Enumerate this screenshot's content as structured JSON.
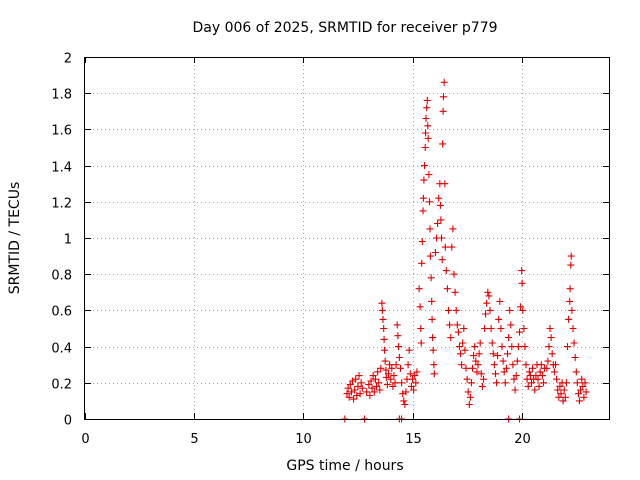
{
  "chart_data": {
    "type": "scatter",
    "title": "Day 006 of 2025, SRMTID for receiver p779",
    "xlabel": "GPS time / hours",
    "ylabel": "SRMTID / TECUs",
    "xlim": [
      0,
      24
    ],
    "ylim": [
      0,
      2
    ],
    "xticks": [
      0,
      5,
      10,
      15,
      20
    ],
    "yticks": [
      0,
      0.2,
      0.4,
      0.6,
      0.8,
      1,
      1.2,
      1.4,
      1.6,
      1.8,
      2
    ],
    "ytick_labels": [
      "0",
      "0.2",
      "0.4",
      "0.6",
      "0.8",
      "1",
      "1.2",
      "1.4",
      "1.6",
      "1.8",
      "2"
    ],
    "grid": true,
    "marker": "plus",
    "color": "#e00000",
    "series": [
      {
        "name": "SRMTID",
        "points": [
          [
            11.9,
            0.0
          ],
          [
            12.8,
            0.0
          ],
          [
            14.4,
            0.0
          ],
          [
            14.5,
            0.0
          ],
          [
            19.4,
            0.0
          ],
          [
            19.9,
            0.0
          ],
          [
            12.0,
            0.14
          ],
          [
            12.05,
            0.17
          ],
          [
            12.1,
            0.12
          ],
          [
            12.15,
            0.19
          ],
          [
            12.2,
            0.15
          ],
          [
            12.25,
            0.21
          ],
          [
            12.3,
            0.11
          ],
          [
            12.35,
            0.16
          ],
          [
            12.4,
            0.22
          ],
          [
            12.45,
            0.13
          ],
          [
            12.5,
            0.18
          ],
          [
            12.55,
            0.24
          ],
          [
            12.6,
            0.14
          ],
          [
            12.65,
            0.2
          ],
          [
            12.7,
            0.17
          ],
          [
            12.9,
            0.15
          ],
          [
            13.0,
            0.19
          ],
          [
            13.05,
            0.13
          ],
          [
            13.1,
            0.21
          ],
          [
            13.15,
            0.17
          ],
          [
            13.2,
            0.24
          ],
          [
            13.25,
            0.15
          ],
          [
            13.3,
            0.22
          ],
          [
            13.35,
            0.18
          ],
          [
            13.4,
            0.26
          ],
          [
            13.45,
            0.2
          ],
          [
            13.5,
            0.16
          ],
          [
            13.55,
            0.28
          ],
          [
            13.6,
            0.64
          ],
          [
            13.62,
            0.6
          ],
          [
            13.65,
            0.55
          ],
          [
            13.68,
            0.5
          ],
          [
            13.7,
            0.44
          ],
          [
            13.72,
            0.38
          ],
          [
            13.75,
            0.32
          ],
          [
            13.78,
            0.27
          ],
          [
            13.8,
            0.23
          ],
          [
            13.85,
            0.19
          ],
          [
            13.9,
            0.25
          ],
          [
            13.95,
            0.3
          ],
          [
            14.0,
            0.22
          ],
          [
            14.05,
            0.28
          ],
          [
            14.1,
            0.18
          ],
          [
            14.15,
            0.24
          ],
          [
            14.2,
            0.2
          ],
          [
            14.25,
            0.3
          ],
          [
            14.3,
            0.52
          ],
          [
            14.33,
            0.46
          ],
          [
            14.36,
            0.4
          ],
          [
            14.4,
            0.34
          ],
          [
            14.45,
            0.28
          ],
          [
            14.5,
            0.2
          ],
          [
            14.55,
            0.14
          ],
          [
            14.6,
            0.1
          ],
          [
            14.65,
            0.08
          ],
          [
            14.7,
            0.15
          ],
          [
            14.75,
            0.22
          ],
          [
            14.8,
            0.3
          ],
          [
            14.85,
            0.38
          ],
          [
            14.9,
            0.25
          ],
          [
            14.95,
            0.18
          ],
          [
            15.0,
            0.22
          ],
          [
            15.05,
            0.16
          ],
          [
            15.1,
            0.24
          ],
          [
            15.15,
            0.2
          ],
          [
            15.2,
            0.26
          ],
          [
            15.3,
            0.72
          ],
          [
            15.35,
            0.62
          ],
          [
            15.38,
            0.5
          ],
          [
            15.4,
            0.42
          ],
          [
            15.42,
            0.86
          ],
          [
            15.45,
            0.98
          ],
          [
            15.48,
            1.15
          ],
          [
            15.5,
            1.22
          ],
          [
            15.52,
            1.32
          ],
          [
            15.55,
            1.4
          ],
          [
            15.58,
            1.5
          ],
          [
            15.6,
            1.58
          ],
          [
            15.62,
            1.66
          ],
          [
            15.65,
            1.72
          ],
          [
            15.68,
            1.76
          ],
          [
            15.7,
            1.62
          ],
          [
            15.72,
            1.55
          ],
          [
            15.75,
            1.35
          ],
          [
            15.78,
            1.2
          ],
          [
            15.8,
            1.05
          ],
          [
            15.82,
            0.9
          ],
          [
            15.85,
            0.78
          ],
          [
            15.88,
            0.65
          ],
          [
            15.9,
            0.55
          ],
          [
            15.92,
            0.45
          ],
          [
            15.95,
            0.38
          ],
          [
            15.98,
            0.3
          ],
          [
            16.0,
            0.25
          ],
          [
            16.05,
            0.92
          ],
          [
            16.1,
            1.0
          ],
          [
            16.15,
            1.08
          ],
          [
            16.2,
            1.22
          ],
          [
            16.25,
            1.3
          ],
          [
            16.28,
            1.18
          ],
          [
            16.3,
            1.1
          ],
          [
            16.33,
            1.0
          ],
          [
            16.36,
            0.88
          ],
          [
            16.38,
            1.52
          ],
          [
            16.4,
            1.7
          ],
          [
            16.42,
            1.78
          ],
          [
            16.45,
            1.86
          ],
          [
            16.48,
            1.3
          ],
          [
            16.5,
            0.95
          ],
          [
            16.55,
            0.82
          ],
          [
            16.6,
            0.72
          ],
          [
            16.65,
            0.6
          ],
          [
            16.7,
            0.52
          ],
          [
            16.75,
            0.45
          ],
          [
            16.8,
            0.95
          ],
          [
            16.85,
            1.05
          ],
          [
            16.9,
            0.8
          ],
          [
            16.95,
            0.7
          ],
          [
            17.0,
            0.6
          ],
          [
            17.05,
            0.52
          ],
          [
            17.1,
            0.48
          ],
          [
            17.15,
            0.4
          ],
          [
            17.2,
            0.36
          ],
          [
            17.25,
            0.3
          ],
          [
            17.3,
            0.42
          ],
          [
            17.35,
            0.5
          ],
          [
            17.4,
            0.38
          ],
          [
            17.45,
            0.28
          ],
          [
            17.5,
            0.22
          ],
          [
            17.55,
            0.15
          ],
          [
            17.6,
            0.08
          ],
          [
            17.65,
            0.12
          ],
          [
            17.7,
            0.2
          ],
          [
            17.75,
            0.28
          ],
          [
            17.8,
            0.35
          ],
          [
            17.85,
            0.4
          ],
          [
            17.9,
            0.32
          ],
          [
            17.95,
            0.26
          ],
          [
            18.0,
            0.3
          ],
          [
            18.05,
            0.36
          ],
          [
            18.1,
            0.42
          ],
          [
            18.15,
            0.25
          ],
          [
            18.2,
            0.18
          ],
          [
            18.25,
            0.22
          ],
          [
            18.3,
            0.5
          ],
          [
            18.35,
            0.58
          ],
          [
            18.4,
            0.64
          ],
          [
            18.45,
            0.7
          ],
          [
            18.5,
            0.68
          ],
          [
            18.55,
            0.6
          ],
          [
            18.6,
            0.5
          ],
          [
            18.65,
            0.42
          ],
          [
            18.7,
            0.36
          ],
          [
            18.75,
            0.3
          ],
          [
            18.8,
            0.25
          ],
          [
            18.85,
            0.2
          ],
          [
            18.9,
            0.35
          ],
          [
            18.95,
            0.55
          ],
          [
            19.0,
            0.65
          ],
          [
            19.05,
            0.5
          ],
          [
            19.1,
            0.4
          ],
          [
            19.15,
            0.32
          ],
          [
            19.2,
            0.26
          ],
          [
            19.25,
            0.2
          ],
          [
            19.3,
            0.28
          ],
          [
            19.35,
            0.36
          ],
          [
            19.4,
            0.45
          ],
          [
            19.45,
            0.6
          ],
          [
            19.5,
            0.52
          ],
          [
            19.55,
            0.4
          ],
          [
            19.6,
            0.3
          ],
          [
            19.65,
            0.22
          ],
          [
            19.7,
            0.16
          ],
          [
            19.75,
            0.24
          ],
          [
            19.8,
            0.32
          ],
          [
            19.85,
            0.4
          ],
          [
            19.9,
            0.48
          ],
          [
            19.95,
            0.62
          ],
          [
            20.0,
            0.82
          ],
          [
            20.02,
            0.75
          ],
          [
            20.05,
            0.6
          ],
          [
            20.1,
            0.5
          ],
          [
            20.15,
            0.4
          ],
          [
            20.2,
            0.3
          ],
          [
            20.25,
            0.22
          ],
          [
            20.3,
            0.18
          ],
          [
            20.35,
            0.26
          ],
          [
            20.4,
            0.24
          ],
          [
            20.45,
            0.2
          ],
          [
            20.5,
            0.28
          ],
          [
            20.55,
            0.22
          ],
          [
            20.6,
            0.16
          ],
          [
            20.65,
            0.24
          ],
          [
            20.7,
            0.3
          ],
          [
            20.75,
            0.22
          ],
          [
            20.8,
            0.18
          ],
          [
            20.85,
            0.26
          ],
          [
            20.9,
            0.3
          ],
          [
            20.95,
            0.24
          ],
          [
            21.0,
            0.2
          ],
          [
            21.05,
            0.28
          ],
          [
            21.15,
            0.28
          ],
          [
            21.2,
            0.32
          ],
          [
            21.25,
            0.4
          ],
          [
            21.3,
            0.5
          ],
          [
            21.35,
            0.45
          ],
          [
            21.4,
            0.36
          ],
          [
            21.45,
            0.3
          ],
          [
            21.5,
            0.26
          ],
          [
            21.55,
            0.3
          ],
          [
            21.6,
            0.22
          ],
          [
            21.65,
            0.16
          ],
          [
            21.7,
            0.12
          ],
          [
            21.75,
            0.18
          ],
          [
            21.8,
            0.14
          ],
          [
            21.85,
            0.2
          ],
          [
            21.9,
            0.1
          ],
          [
            21.95,
            0.16
          ],
          [
            22.0,
            0.12
          ],
          [
            22.05,
            0.2
          ],
          [
            22.1,
            0.4
          ],
          [
            22.15,
            0.55
          ],
          [
            22.2,
            0.65
          ],
          [
            22.22,
            0.72
          ],
          [
            22.25,
            0.85
          ],
          [
            22.27,
            0.9
          ],
          [
            22.3,
            0.6
          ],
          [
            22.35,
            0.5
          ],
          [
            22.4,
            0.42
          ],
          [
            22.45,
            0.34
          ],
          [
            22.5,
            0.26
          ],
          [
            22.55,
            0.2
          ],
          [
            22.6,
            0.14
          ],
          [
            22.65,
            0.1
          ],
          [
            22.7,
            0.16
          ],
          [
            22.75,
            0.22
          ],
          [
            22.8,
            0.18
          ],
          [
            22.85,
            0.12
          ],
          [
            22.9,
            0.2
          ],
          [
            22.95,
            0.15
          ]
        ]
      }
    ]
  }
}
